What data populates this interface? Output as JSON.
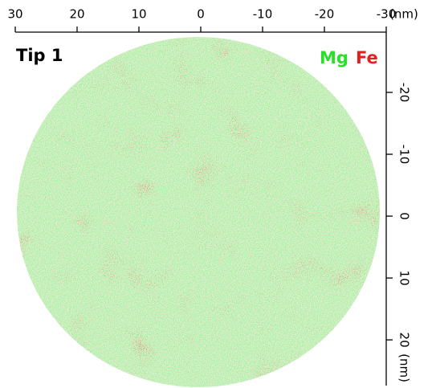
{
  "chart_data": {
    "type": "point-cloud",
    "title": "Tip 1",
    "series": [
      {
        "name": "Mg",
        "color": "#27e027"
      },
      {
        "name": "Fe",
        "color": "#e0201e"
      }
    ],
    "xlim": [
      30,
      -30
    ],
    "xticks": [
      30,
      20,
      10,
      0,
      -10,
      -20,
      -30
    ],
    "x_unit": "(nm)",
    "ylim": [
      -30,
      27
    ],
    "yticks": [
      -20,
      -10,
      0,
      10,
      20
    ],
    "y_unit": "(nm)"
  }
}
